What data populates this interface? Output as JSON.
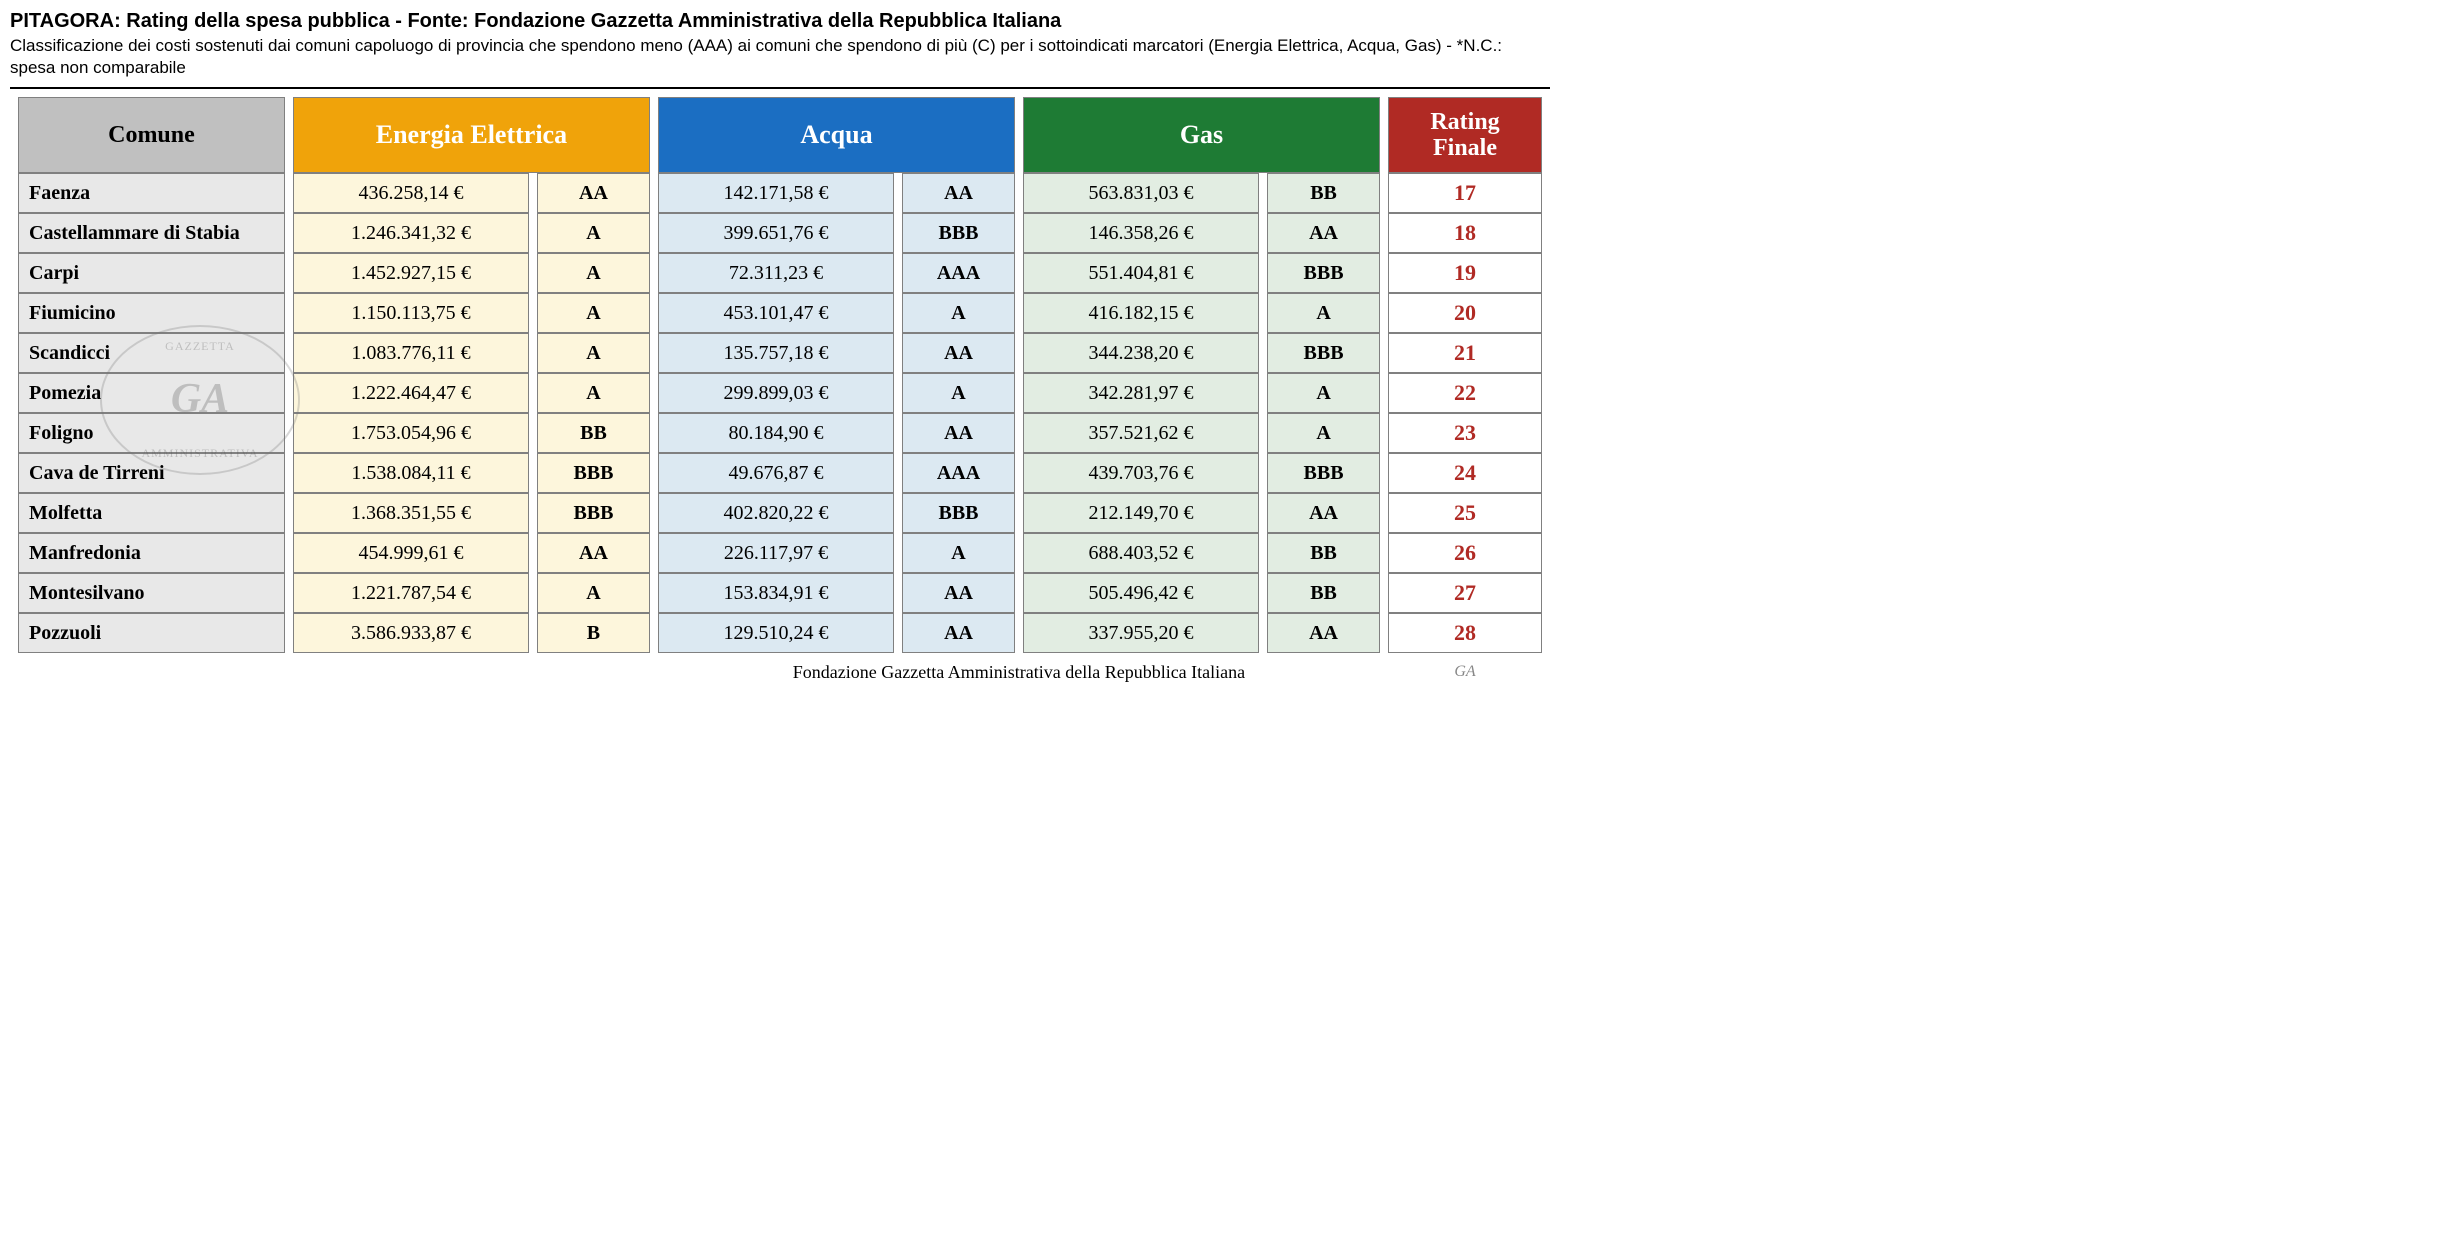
{
  "title": "PITAGORA: Rating della spesa pubblica - Fonte: Fondazione Gazzetta Amministrativa della Repubblica Italiana",
  "subtitle": "Classificazione dei costi sostenuti dai comuni capoluogo di provincia che spendono meno (AAA) ai comuni che spendono di più (C) per i sottoindicati marcatori (Energia Elettrica, Acqua, Gas) - *N.C.: spesa non comparabile",
  "footer": "Fondazione Gazzetta Amministrativa della Repubblica Italiana",
  "footer_ga": "GA",
  "colors": {
    "ee_header": "#f0a30a",
    "ee_cell": "#fdf6dc",
    "acqua_header": "#1b6ec2",
    "acqua_cell": "#dce9f2",
    "gas_header": "#1e7b34",
    "gas_cell": "#e2ede2",
    "rating_header": "#b02a24",
    "rating_text": "#b02a24"
  },
  "columns": {
    "comune": "Comune",
    "ee": "Energia Elettrica",
    "acqua": "Acqua",
    "gas": "Gas",
    "rating": "Rating Finale"
  },
  "col_widths": {
    "comune": 260,
    "val": 230,
    "rat": 110,
    "rating": 150
  },
  "rows": [
    {
      "comune": "Faenza",
      "ee_val": "436.258,14 €",
      "ee_rat": "AA",
      "ac_val": "142.171,58 €",
      "ac_rat": "AA",
      "gas_val": "563.831,03 €",
      "gas_rat": "BB",
      "final": "17"
    },
    {
      "comune": "Castellammare di Stabia",
      "ee_val": "1.246.341,32 €",
      "ee_rat": "A",
      "ac_val": "399.651,76 €",
      "ac_rat": "BBB",
      "gas_val": "146.358,26 €",
      "gas_rat": "AA",
      "final": "18"
    },
    {
      "comune": "Carpi",
      "ee_val": "1.452.927,15 €",
      "ee_rat": "A",
      "ac_val": "72.311,23 €",
      "ac_rat": "AAA",
      "gas_val": "551.404,81 €",
      "gas_rat": "BBB",
      "final": "19"
    },
    {
      "comune": "Fiumicino",
      "ee_val": "1.150.113,75 €",
      "ee_rat": "A",
      "ac_val": "453.101,47 €",
      "ac_rat": "A",
      "gas_val": "416.182,15 €",
      "gas_rat": "A",
      "final": "20"
    },
    {
      "comune": "Scandicci",
      "ee_val": "1.083.776,11 €",
      "ee_rat": "A",
      "ac_val": "135.757,18 €",
      "ac_rat": "AA",
      "gas_val": "344.238,20 €",
      "gas_rat": "BBB",
      "final": "21"
    },
    {
      "comune": "Pomezia",
      "ee_val": "1.222.464,47 €",
      "ee_rat": "A",
      "ac_val": "299.899,03 €",
      "ac_rat": "A",
      "gas_val": "342.281,97 €",
      "gas_rat": "A",
      "final": "22"
    },
    {
      "comune": "Foligno",
      "ee_val": "1.753.054,96 €",
      "ee_rat": "BB",
      "ac_val": "80.184,90 €",
      "ac_rat": "AA",
      "gas_val": "357.521,62 €",
      "gas_rat": "A",
      "final": "23"
    },
    {
      "comune": "Cava de Tirreni",
      "ee_val": "1.538.084,11 €",
      "ee_rat": "BBB",
      "ac_val": "49.676,87 €",
      "ac_rat": "AAA",
      "gas_val": "439.703,76 €",
      "gas_rat": "BBB",
      "final": "24"
    },
    {
      "comune": "Molfetta",
      "ee_val": "1.368.351,55 €",
      "ee_rat": "BBB",
      "ac_val": "402.820,22 €",
      "ac_rat": "BBB",
      "gas_val": "212.149,70 €",
      "gas_rat": "AA",
      "final": "25"
    },
    {
      "comune": "Manfredonia",
      "ee_val": "454.999,61 €",
      "ee_rat": "AA",
      "ac_val": "226.117,97 €",
      "ac_rat": "A",
      "gas_val": "688.403,52 €",
      "gas_rat": "BB",
      "final": "26"
    },
    {
      "comune": "Montesilvano",
      "ee_val": "1.221.787,54 €",
      "ee_rat": "A",
      "ac_val": "153.834,91 €",
      "ac_rat": "AA",
      "gas_val": "505.496,42 €",
      "gas_rat": "BB",
      "final": "27"
    },
    {
      "comune": "Pozzuoli",
      "ee_val": "3.586.933,87 €",
      "ee_rat": "B",
      "ac_val": "129.510,24 €",
      "ac_rat": "AA",
      "gas_val": "337.955,20 €",
      "gas_rat": "AA",
      "final": "28"
    }
  ]
}
